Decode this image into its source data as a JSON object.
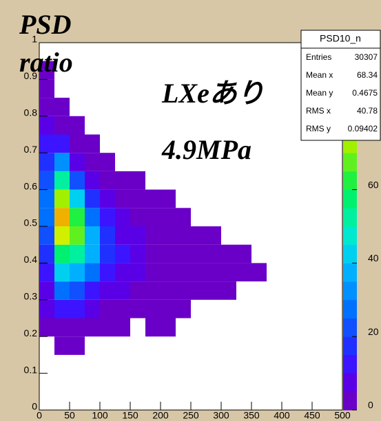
{
  "chart_data": {
    "type": "heatmap",
    "y_title_lines": [
      "PSD",
      "ratio"
    ],
    "annotations": [
      "LXeあり",
      "4.9MPa"
    ],
    "stats": {
      "title": "PSD10_n",
      "rows": [
        {
          "label": "Entries",
          "value": 30307
        },
        {
          "label": "Mean x",
          "value": 68.34
        },
        {
          "label": "Mean y",
          "value": 0.4675
        },
        {
          "label": "RMS x",
          "value": 40.78
        },
        {
          "label": "RMS y",
          "value": 0.09402
        }
      ]
    },
    "xlim": [
      0,
      500
    ],
    "ylim": [
      0,
      1
    ],
    "zlim": [
      0,
      100
    ],
    "xticks": [
      0,
      50,
      100,
      150,
      200,
      250,
      300,
      350,
      400,
      450,
      500
    ],
    "yticks": [
      0,
      0.1,
      0.2,
      0.3,
      0.4,
      0.5,
      0.6,
      0.7,
      0.8,
      0.9,
      1
    ],
    "zticks": [
      0,
      20,
      40,
      60
    ],
    "palette": [
      "#6a00c8",
      "#5a00e6",
      "#3c14ff",
      "#2030ff",
      "#1050ff",
      "#0070ff",
      "#0090ff",
      "#00b0ff",
      "#00d0f0",
      "#00e8d0",
      "#00f0a0",
      "#00f070",
      "#20f040",
      "#60f020",
      "#a0f000",
      "#d0f000",
      "#f0e000",
      "#f0b000",
      "#f07000",
      "#f03000"
    ],
    "x_bins": [
      0,
      25,
      50,
      75,
      100,
      125,
      150,
      175,
      200,
      225,
      250,
      275,
      300,
      325,
      350,
      375
    ],
    "y_bins": [
      0.15,
      0.2,
      0.25,
      0.3,
      0.35,
      0.4,
      0.45,
      0.5,
      0.55,
      0.6,
      0.65,
      0.7,
      0.75,
      0.8,
      0.85,
      0.9,
      0.95
    ],
    "z": [
      [
        0,
        1,
        1,
        0,
        0,
        0,
        0,
        0,
        0,
        0,
        0,
        0,
        0,
        0,
        0
      ],
      [
        2,
        4,
        3,
        2,
        1,
        1,
        0,
        1,
        1,
        0,
        0,
        0,
        0,
        0,
        0
      ],
      [
        5,
        12,
        10,
        6,
        3,
        2,
        1,
        1,
        1,
        1,
        0,
        0,
        0,
        0,
        0
      ],
      [
        8,
        25,
        22,
        14,
        8,
        5,
        3,
        2,
        2,
        1,
        1,
        1,
        1,
        0,
        0
      ],
      [
        12,
        40,
        38,
        25,
        14,
        8,
        5,
        3,
        3,
        2,
        2,
        2,
        2,
        2,
        1
      ],
      [
        18,
        55,
        52,
        35,
        18,
        10,
        6,
        4,
        3,
        3,
        2,
        2,
        2,
        1,
        0
      ],
      [
        22,
        75,
        65,
        38,
        16,
        8,
        5,
        3,
        2,
        2,
        1,
        1,
        0,
        0,
        0
      ],
      [
        25,
        85,
        60,
        28,
        10,
        5,
        3,
        2,
        1,
        1,
        0,
        0,
        0,
        0,
        0
      ],
      [
        25,
        70,
        40,
        15,
        6,
        3,
        2,
        1,
        1,
        0,
        0,
        0,
        0,
        0,
        0
      ],
      [
        22,
        50,
        22,
        6,
        3,
        1,
        1,
        0,
        0,
        0,
        0,
        0,
        0,
        0,
        0
      ],
      [
        18,
        30,
        8,
        2,
        1,
        0,
        0,
        0,
        0,
        0,
        0,
        0,
        0,
        0,
        0
      ],
      [
        12,
        14,
        3,
        1,
        0,
        0,
        0,
        0,
        0,
        0,
        0,
        0,
        0,
        0,
        0
      ],
      [
        6,
        4,
        1,
        0,
        0,
        0,
        0,
        0,
        0,
        0,
        0,
        0,
        0,
        0,
        0
      ],
      [
        3,
        1,
        0,
        0,
        0,
        0,
        0,
        0,
        0,
        0,
        0,
        0,
        0,
        0,
        0
      ],
      [
        2,
        0,
        0,
        0,
        0,
        0,
        0,
        0,
        0,
        0,
        0,
        0,
        0,
        0,
        0
      ],
      [
        1,
        0,
        0,
        0,
        0,
        0,
        0,
        0,
        0,
        0,
        0,
        0,
        0,
        0,
        0
      ]
    ]
  }
}
